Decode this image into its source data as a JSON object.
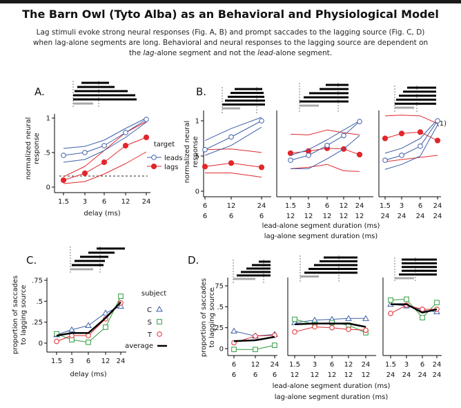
{
  "header": {
    "title": "The Barn Owl (Tyto Alba) as an Behavioral and Physiological Model",
    "subtitle_parts": [
      "Lag stimuli evoke strong neural responses (Fig. A, B) and prompt saccades to the lagging source (Fig. C, D) when lag-alone segments are long.  Behavioral and neural responses to the lagging source are dependent on the ",
      "lag",
      "-alone segment and not the ",
      "lead",
      "-alone segment."
    ]
  },
  "colors": {
    "blue": "#3d5ea8",
    "red": "#e2262b",
    "green": "#2e9a3c",
    "black": "#000000",
    "gray": "#a8a8a8"
  },
  "panels": {
    "A": {
      "label": "A.",
      "ylabel": [
        "normalized neural",
        "response"
      ],
      "xlabel": "delay (ms)",
      "xticks": [
        "1.5",
        "3",
        "6",
        "12",
        "24"
      ],
      "yticks": [
        "0",
        ".5",
        "1"
      ]
    },
    "B": {
      "label": "B.",
      "ylabel": [
        "normalized neural",
        "response"
      ],
      "yticks": [
        "0",
        ".5",
        "1"
      ],
      "annotation": "(1)",
      "xticks": [
        [
          "6",
          "12",
          "24"
        ],
        [
          "1.5",
          "3",
          "6",
          "12",
          "24"
        ],
        [
          "1.5",
          "3",
          "6",
          "24"
        ]
      ],
      "xticks_row2": [
        [
          "6",
          "6",
          "6"
        ],
        [
          "12",
          "12",
          "12",
          "12",
          "12"
        ],
        [
          "24",
          "24",
          "24",
          "24"
        ]
      ],
      "xlabel1": "lead-alone  segment duration (ms)",
      "xlabel2": "lag-alone  segment duration (ms)"
    },
    "C": {
      "label": "C.",
      "ylabel": [
        "proportion of saccades",
        "to lagging source"
      ],
      "xlabel": "delay (ms)",
      "xticks": [
        "1.5",
        "3",
        "6",
        "12",
        "24"
      ],
      "yticks": [
        "0",
        ".25",
        ".5",
        ".75"
      ]
    },
    "D": {
      "label": "D.",
      "ylabel": [
        "proportion of saccades",
        "to lagging source"
      ],
      "yticks": [
        "0",
        ".25",
        ".5",
        ".75"
      ],
      "xticks": [
        [
          "6",
          "12",
          "24"
        ],
        [
          "1.5",
          "3",
          "6",
          "12",
          "24"
        ],
        [
          "1.5",
          "3",
          "6",
          "24"
        ]
      ],
      "xticks_row2": [
        [
          "6",
          "6",
          "6"
        ],
        [
          "12",
          "12",
          "12",
          "12",
          "12"
        ],
        [
          "24",
          "24",
          "24",
          "24"
        ]
      ],
      "xlabel1": "lead-alone  segment duration (ms)",
      "xlabel2": "lag-alone  segment duration (ms)"
    }
  },
  "legend_A": {
    "title": "target",
    "items": [
      "leads",
      "lags"
    ]
  },
  "legend_C": {
    "title": "subject",
    "items": [
      "C",
      "S",
      "T",
      "average"
    ]
  },
  "chart_data": [
    {
      "panel": "A",
      "type": "line",
      "x": [
        1.5,
        3,
        6,
        12,
        24
      ],
      "ylim": [
        0,
        1
      ],
      "series": [
        {
          "name": "leads",
          "values": [
            0.46,
            0.5,
            0.6,
            0.79,
            0.98
          ],
          "band_upper": [
            0.56,
            0.59,
            0.68,
            0.85,
            1.0
          ],
          "band_lower": [
            0.36,
            0.4,
            0.53,
            0.72,
            0.94
          ]
        },
        {
          "name": "lags",
          "values": [
            0.1,
            0.2,
            0.36,
            0.6,
            0.72
          ],
          "band_upper": [
            0.15,
            0.3,
            0.53,
            0.79,
            0.95
          ],
          "band_lower": [
            0.05,
            0.08,
            0.19,
            0.34,
            0.51
          ]
        }
      ],
      "criterion_line": 0.16
    },
    {
      "panel": "B",
      "type": "line",
      "ylim": [
        0,
        1
      ],
      "groups": [
        {
          "lead_alone": [
            6,
            12,
            24
          ],
          "lag_alone": [
            6,
            6,
            6
          ],
          "leads": [
            0.59,
            0.77,
            1.0
          ],
          "leads_upper": [
            0.72,
            0.89,
            1.05
          ],
          "leads_lower": [
            0.51,
            0.65,
            0.91
          ],
          "lags": [
            0.35,
            0.4,
            0.34
          ],
          "lags_upper": [
            0.59,
            0.6,
            0.55
          ],
          "lags_lower": [
            0.26,
            0.26,
            0.2
          ]
        },
        {
          "lead_alone": [
            1.5,
            3,
            6,
            12,
            24
          ],
          "lag_alone": [
            12,
            12,
            12,
            12,
            12
          ],
          "leads": [
            0.44,
            0.51,
            0.65,
            0.79,
            0.99
          ],
          "leads_upper": [
            0.51,
            0.59,
            0.73,
            0.87,
            1.0
          ],
          "leads_lower": [
            0.32,
            0.32,
            0.46,
            0.6,
            0.79
          ],
          "lags": [
            0.54,
            0.57,
            0.61,
            0.6,
            0.52
          ],
          "lags_upper": [
            0.81,
            0.8,
            0.87,
            0.83,
            0.8
          ],
          "lags_lower": [
            0.32,
            0.34,
            0.38,
            0.29,
            0.28
          ]
        },
        {
          "lead_alone": [
            1.5,
            3,
            6,
            24
          ],
          "lag_alone": [
            24,
            24,
            24,
            24
          ],
          "leads": [
            0.44,
            0.51,
            0.64,
            1.0
          ],
          "leads_upper": [
            0.54,
            0.61,
            0.75,
            1.02
          ],
          "leads_lower": [
            0.31,
            0.38,
            0.5,
            0.94
          ],
          "lags": [
            0.75,
            0.82,
            0.84,
            0.72
          ],
          "lags_upper": [
            1.07,
            1.08,
            1.07,
            0.96
          ],
          "lags_lower": [
            0.42,
            0.45,
            0.48,
            0.51
          ]
        }
      ]
    },
    {
      "panel": "C",
      "type": "line",
      "x": [
        1.5,
        3,
        6,
        12,
        24
      ],
      "ylim": [
        0,
        0.75
      ],
      "series": [
        {
          "name": "C",
          "values": [
            0.1,
            0.16,
            0.21,
            0.36,
            0.44
          ]
        },
        {
          "name": "S",
          "values": [
            0.11,
            0.04,
            0.01,
            0.19,
            0.56
          ]
        },
        {
          "name": "T",
          "values": [
            0.02,
            0.09,
            0.09,
            0.29,
            0.48
          ]
        },
        {
          "name": "average",
          "values": [
            0.09,
            0.12,
            0.12,
            0.3,
            0.49
          ]
        }
      ]
    },
    {
      "panel": "D",
      "type": "line",
      "ylim": [
        0,
        0.75
      ],
      "groups": [
        {
          "lead_alone": [
            6,
            12,
            24
          ],
          "lag_alone": [
            6,
            6,
            6
          ],
          "C": [
            0.21,
            0.15,
            0.17
          ],
          "S": [
            -0.01,
            -0.01,
            0.04
          ],
          "T": [
            0.07,
            0.15,
            0.16
          ],
          "average": [
            0.09,
            0.1,
            0.14
          ]
        },
        {
          "lead_alone": [
            1.5,
            3,
            6,
            12,
            24
          ],
          "lag_alone": [
            12,
            12,
            12,
            12,
            12
          ],
          "C": [
            0.31,
            0.34,
            0.35,
            0.36,
            0.36
          ],
          "S": [
            0.35,
            0.29,
            0.31,
            0.28,
            0.19
          ],
          "T": [
            0.2,
            0.26,
            0.25,
            0.23,
            0.22
          ],
          "average": [
            0.29,
            0.3,
            0.3,
            0.3,
            0.26
          ]
        },
        {
          "lead_alone": [
            1.5,
            3,
            6,
            24
          ],
          "lag_alone": [
            24,
            24,
            24,
            24
          ],
          "C": [
            0.53,
            0.51,
            0.46,
            0.44
          ],
          "S": [
            0.58,
            0.59,
            0.37,
            0.55
          ],
          "T": [
            0.42,
            0.52,
            0.47,
            0.47
          ],
          "average": [
            0.53,
            0.53,
            0.43,
            0.47
          ]
        }
      ]
    }
  ]
}
